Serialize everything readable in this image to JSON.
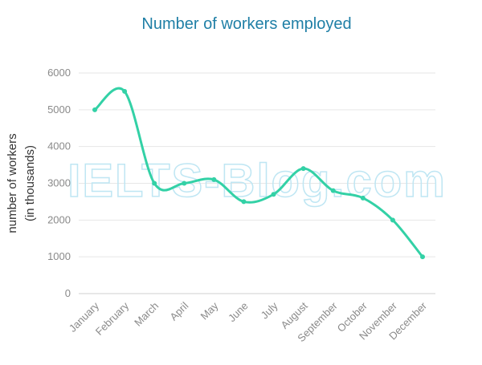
{
  "chart_data": {
    "type": "line",
    "title": "Number of workers employed",
    "ylabel_lines": [
      "number of workers",
      "(in thousands)"
    ],
    "xlabel": "",
    "categories": [
      "January",
      "February",
      "March",
      "April",
      "May",
      "June",
      "July",
      "August",
      "September",
      "October",
      "November",
      "December"
    ],
    "series": [
      {
        "values": [
          5000,
          5500,
          3000,
          3000,
          3100,
          2500,
          2700,
          3400,
          2800,
          2600,
          2000,
          1000
        ]
      }
    ],
    "ylim": [
      0,
      6000
    ],
    "yticks": [
      0,
      1000,
      2000,
      3000,
      4000,
      5000,
      6000
    ],
    "grid": true,
    "legend": "none",
    "line_color": "#33d1a6",
    "title_color": "#1f7fa6"
  },
  "watermark": "IELTS-Blog.com"
}
